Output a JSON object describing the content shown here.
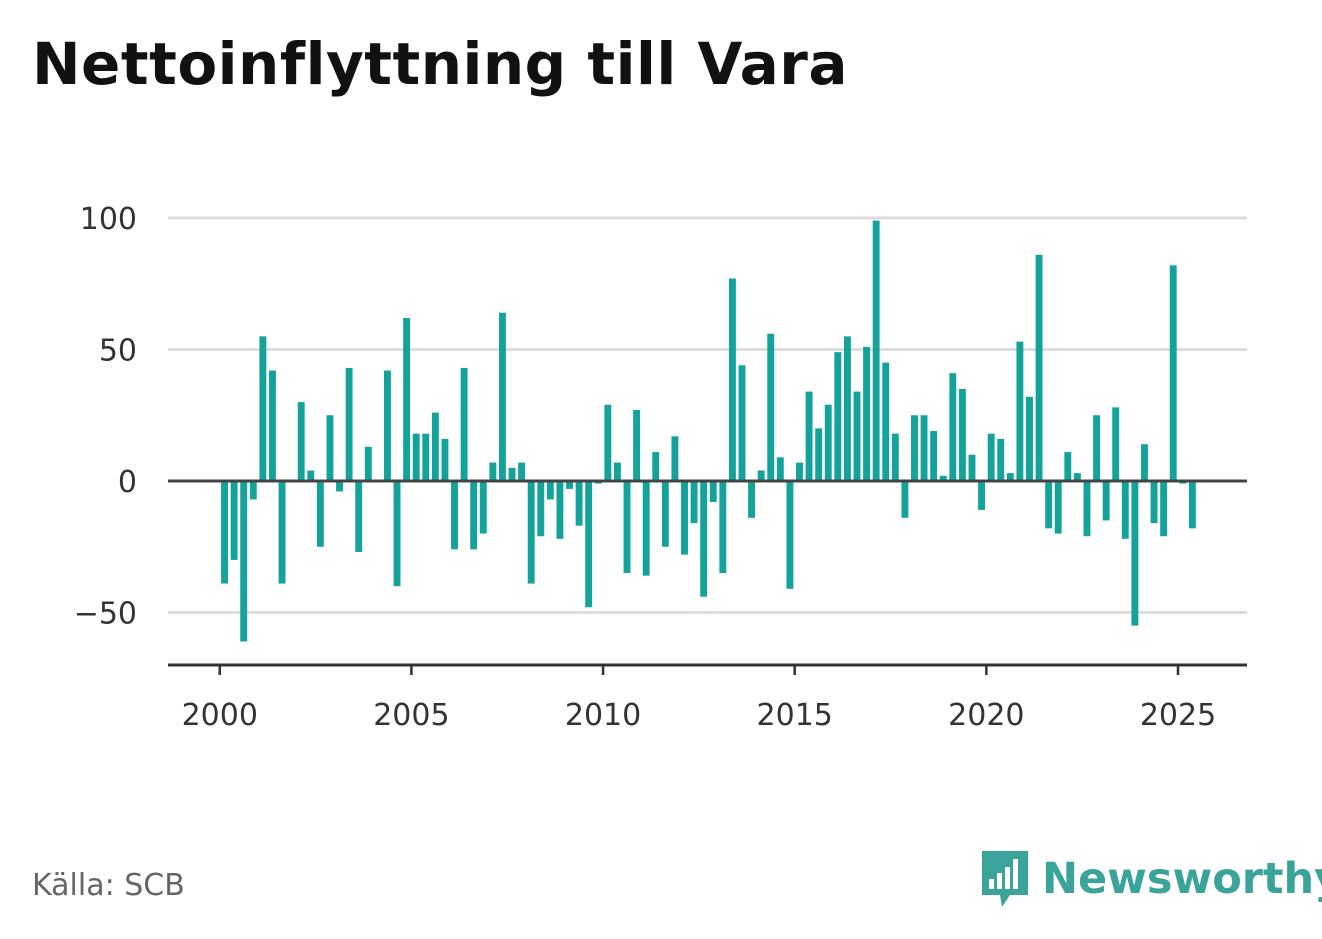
{
  "title": "Nettoinflyttning till Vara",
  "source": "Källa: SCB",
  "brand": {
    "name": "Newsworthy",
    "icon": "newsworthy-logo-icon",
    "color": "#3aa39a"
  },
  "colors": {
    "bar": "#14a39a",
    "grid": "#dddddd",
    "zero_line": "#444444",
    "axis": "#333333"
  },
  "chart_data": {
    "type": "bar",
    "title": "Nettoinflyttning till Vara",
    "xlabel": "",
    "ylabel": "",
    "ylim": [
      -70,
      100
    ],
    "xlim": [
      1998.65,
      2026.8
    ],
    "grid": true,
    "yticks": [
      100,
      50,
      0,
      -50
    ],
    "ytick_labels": [
      "100",
      "50",
      "0",
      "−50"
    ],
    "xticks": [
      2000,
      2005,
      2010,
      2015,
      2020,
      2025
    ],
    "xtick_labels": [
      "2000",
      "2005",
      "2010",
      "2015",
      "2020",
      "2025"
    ],
    "frequency": "quarterly",
    "x_start": 2000.125,
    "series": [
      {
        "values": [
          -39,
          -30,
          -61,
          -7,
          55,
          42,
          -39,
          0,
          30,
          4,
          -25,
          25,
          -4,
          43,
          -27,
          13,
          0,
          42,
          -40,
          62,
          18,
          18,
          26,
          16,
          -26,
          43,
          -26,
          -20,
          7,
          64,
          5,
          7,
          -39,
          -21,
          -7,
          -22,
          -3,
          -17,
          -48,
          -1,
          29,
          7,
          -35,
          27,
          -36,
          11,
          -25,
          17,
          -28,
          -16,
          -44,
          -8,
          -35,
          77,
          44,
          -14,
          4,
          56,
          9,
          -41,
          7,
          34,
          20,
          29,
          49,
          55,
          34,
          51,
          99,
          45,
          18,
          -14,
          25,
          25,
          19,
          2,
          41,
          35,
          10,
          -11,
          18,
          16,
          3,
          53,
          32,
          86,
          -18,
          -20,
          11,
          3,
          -21,
          25,
          -15,
          28,
          -22,
          -55,
          14,
          -16,
          -21,
          82,
          -1,
          -18
        ]
      }
    ]
  }
}
